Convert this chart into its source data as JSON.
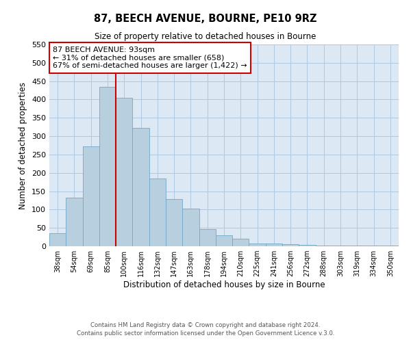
{
  "title": "87, BEECH AVENUE, BOURNE, PE10 9RZ",
  "subtitle": "Size of property relative to detached houses in Bourne",
  "xlabel": "Distribution of detached houses by size in Bourne",
  "ylabel": "Number of detached properties",
  "categories": [
    "38sqm",
    "54sqm",
    "69sqm",
    "85sqm",
    "100sqm",
    "116sqm",
    "132sqm",
    "147sqm",
    "163sqm",
    "178sqm",
    "194sqm",
    "210sqm",
    "225sqm",
    "241sqm",
    "256sqm",
    "272sqm",
    "288sqm",
    "303sqm",
    "319sqm",
    "334sqm",
    "350sqm"
  ],
  "values": [
    35,
    133,
    272,
    435,
    405,
    323,
    184,
    128,
    103,
    46,
    30,
    20,
    8,
    7,
    5,
    3,
    2,
    2,
    1,
    1,
    2
  ],
  "bar_color": "#b8cfe0",
  "bar_edge_color": "#6fa8c8",
  "vline_x": 3.5,
  "vline_color": "#cc0000",
  "annotation_box_text": "87 BEECH AVENUE: 93sqm\n← 31% of detached houses are smaller (658)\n67% of semi-detached houses are larger (1,422) →",
  "annotation_box_edge_color": "#cc0000",
  "ylim": [
    0,
    550
  ],
  "yticks": [
    0,
    50,
    100,
    150,
    200,
    250,
    300,
    350,
    400,
    450,
    500,
    550
  ],
  "footer1": "Contains HM Land Registry data © Crown copyright and database right 2024.",
  "footer2": "Contains public sector information licensed under the Open Government Licence v.3.0.",
  "background_color": "#ffffff",
  "plot_bg_color": "#dce9f5",
  "grid_color": "#b0c8e0"
}
